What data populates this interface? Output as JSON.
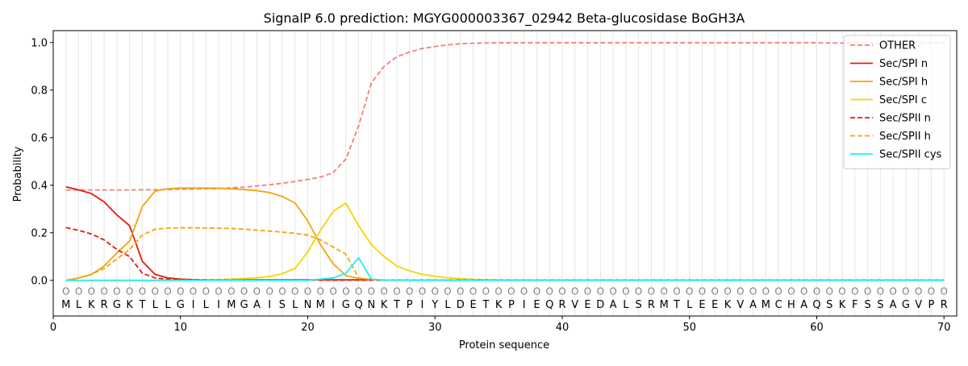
{
  "chart_data": {
    "type": "line",
    "title": "SignalP 6.0 prediction: MGYG000003367_02942 Beta-glucosidase BoGH3A",
    "xlabel": "Protein sequence",
    "ylabel": "Probability",
    "xlim": [
      0,
      71
    ],
    "ylim": [
      -0.15,
      1.05
    ],
    "xticks": [
      0,
      10,
      20,
      30,
      40,
      50,
      60,
      70
    ],
    "yticks": [
      0.0,
      0.2,
      0.4,
      0.6,
      0.8,
      1.0
    ],
    "xtick_labels": [
      "0",
      "10",
      "20",
      "30",
      "40",
      "50",
      "60",
      "70"
    ],
    "ytick_labels": [
      "0.0",
      "0.2",
      "0.4",
      "0.6",
      "0.8",
      "1.0"
    ],
    "grid": "vertical lines at every residue",
    "legend_position": "top-right",
    "sequence": [
      "M",
      "L",
      "K",
      "R",
      "G",
      "K",
      "T",
      "L",
      "L",
      "G",
      "I",
      "L",
      "I",
      "M",
      "G",
      "A",
      "I",
      "S",
      "L",
      "N",
      "M",
      "I",
      "G",
      "Q",
      "N",
      "K",
      "T",
      "P",
      "I",
      "Y",
      "L",
      "D",
      "E",
      "T",
      "K",
      "P",
      "I",
      "E",
      "Q",
      "R",
      "V",
      "E",
      "D",
      "A",
      "L",
      "S",
      "R",
      "M",
      "T",
      "L",
      "E",
      "E",
      "K",
      "V",
      "A",
      "M",
      "C",
      "H",
      "A",
      "Q",
      "S",
      "K",
      "F",
      "S",
      "S",
      "A",
      "G",
      "V",
      "P",
      "R"
    ],
    "position_marker": "O",
    "series": [
      {
        "name": "OTHER",
        "color": "#f08080",
        "dash": "dashed",
        "values": [
          0.38,
          0.38,
          0.38,
          0.38,
          0.38,
          0.38,
          0.381,
          0.381,
          0.382,
          0.383,
          0.384,
          0.385,
          0.386,
          0.389,
          0.392,
          0.397,
          0.402,
          0.408,
          0.416,
          0.424,
          0.434,
          0.453,
          0.51,
          0.65,
          0.83,
          0.9,
          0.94,
          0.96,
          0.975,
          0.983,
          0.99,
          0.995,
          0.997,
          0.998,
          0.999,
          0.999,
          0.999,
          0.999,
          0.999,
          0.999,
          0.999,
          0.999,
          0.999,
          0.999,
          0.999,
          0.999,
          0.999,
          0.999,
          0.999,
          0.999,
          0.999,
          0.999,
          0.999,
          0.999,
          0.999,
          0.999,
          0.999,
          0.999,
          0.999,
          0.999,
          0.998,
          0.998,
          0.997,
          0.997,
          0.996,
          0.996,
          0.997,
          0.998,
          0.999,
          0.999
        ]
      },
      {
        "name": "Sec/SPI n",
        "color": "#e8190e",
        "dash": "solid",
        "values": [
          0.393,
          0.38,
          0.365,
          0.33,
          0.275,
          0.23,
          0.08,
          0.025,
          0.01,
          0.005,
          0.003,
          0.002,
          0.002,
          0.002,
          0.002,
          0.002,
          0.002,
          0.002,
          0.002,
          0.002,
          0.002,
          0.002,
          0.002,
          0.002,
          0.002,
          0.001,
          0.001,
          0.001,
          0.001,
          0.001,
          0.001,
          0.001,
          0.001,
          0.001,
          0.001,
          0.001,
          0.001,
          0.001,
          0.001,
          0.001,
          0.001,
          0.001,
          0.001,
          0.001,
          0.001,
          0.001,
          0.001,
          0.001,
          0.001,
          0.001,
          0.001,
          0.001,
          0.001,
          0.001,
          0.001,
          0.001,
          0.001,
          0.001,
          0.001,
          0.001,
          0.001,
          0.001,
          0.001,
          0.001,
          0.001,
          0.001,
          0.001,
          0.001,
          0.001,
          0.001
        ]
      },
      {
        "name": "Sec/SPI h",
        "color": "#f5a30a",
        "dash": "solid",
        "values": [
          0.0,
          0.01,
          0.025,
          0.06,
          0.115,
          0.165,
          0.31,
          0.375,
          0.385,
          0.388,
          0.388,
          0.388,
          0.387,
          0.385,
          0.382,
          0.377,
          0.369,
          0.353,
          0.325,
          0.25,
          0.15,
          0.07,
          0.02,
          0.008,
          0.003,
          0.001,
          0.001,
          0.001,
          0.001,
          0.001,
          0.001,
          0.001,
          0.001,
          0.001,
          0.001,
          0.001,
          0.001,
          0.001,
          0.001,
          0.001,
          0.001,
          0.001,
          0.001,
          0.001,
          0.001,
          0.001,
          0.001,
          0.001,
          0.001,
          0.001,
          0.001,
          0.001,
          0.001,
          0.001,
          0.001,
          0.001,
          0.001,
          0.001,
          0.001,
          0.001,
          0.001,
          0.001,
          0.001,
          0.001,
          0.001,
          0.001,
          0.001,
          0.001,
          0.001,
          0.001
        ]
      },
      {
        "name": "Sec/SPI c",
        "color": "#f5d400",
        "dash": "solid",
        "values": [
          0.0,
          0.0,
          0.0,
          0.0,
          0.0,
          0.0,
          0.0,
          0.0,
          0.0,
          0.0,
          0.001,
          0.002,
          0.003,
          0.005,
          0.008,
          0.011,
          0.016,
          0.028,
          0.05,
          0.12,
          0.21,
          0.29,
          0.325,
          0.23,
          0.15,
          0.1,
          0.06,
          0.04,
          0.025,
          0.017,
          0.011,
          0.007,
          0.004,
          0.003,
          0.002,
          0.001,
          0.001,
          0.001,
          0.001,
          0.001,
          0.001,
          0.001,
          0.001,
          0.001,
          0.001,
          0.001,
          0.001,
          0.001,
          0.001,
          0.001,
          0.001,
          0.001,
          0.001,
          0.001,
          0.001,
          0.001,
          0.001,
          0.001,
          0.001,
          0.001,
          0.001,
          0.001,
          0.001,
          0.001,
          0.001,
          0.001,
          0.001,
          0.001,
          0.001,
          0.001
        ]
      },
      {
        "name": "Sec/SPII n",
        "color": "#e8190e",
        "dash": "dashed",
        "values": [
          0.222,
          0.21,
          0.195,
          0.17,
          0.13,
          0.1,
          0.03,
          0.01,
          0.004,
          0.002,
          0.001,
          0.001,
          0.001,
          0.001,
          0.001,
          0.001,
          0.001,
          0.001,
          0.001,
          0.001,
          0.001,
          0.001,
          0.001,
          0.001,
          0.001,
          0.001,
          0.001,
          0.001,
          0.001,
          0.001,
          0.001,
          0.001,
          0.001,
          0.001,
          0.001,
          0.001,
          0.001,
          0.001,
          0.001,
          0.001,
          0.001,
          0.001,
          0.001,
          0.001,
          0.001,
          0.001,
          0.001,
          0.001,
          0.001,
          0.001,
          0.001,
          0.001,
          0.001,
          0.001,
          0.001,
          0.001,
          0.001,
          0.001,
          0.001,
          0.001,
          0.001,
          0.001,
          0.001,
          0.001,
          0.001,
          0.001,
          0.001,
          0.001,
          0.001,
          0.001
        ]
      },
      {
        "name": "Sec/SPII h",
        "color": "#f5a30a",
        "dash": "dashed",
        "values": [
          0.0,
          0.01,
          0.025,
          0.05,
          0.09,
          0.13,
          0.19,
          0.215,
          0.22,
          0.221,
          0.221,
          0.22,
          0.219,
          0.218,
          0.215,
          0.211,
          0.207,
          0.203,
          0.198,
          0.19,
          0.17,
          0.14,
          0.11,
          0.01,
          0.003,
          0.001,
          0.001,
          0.001,
          0.001,
          0.001,
          0.001,
          0.001,
          0.001,
          0.001,
          0.001,
          0.001,
          0.001,
          0.001,
          0.001,
          0.001,
          0.001,
          0.001,
          0.001,
          0.001,
          0.001,
          0.001,
          0.001,
          0.001,
          0.001,
          0.001,
          0.001,
          0.001,
          0.001,
          0.001,
          0.001,
          0.001,
          0.001,
          0.001,
          0.001,
          0.001,
          0.001,
          0.001,
          0.001,
          0.001,
          0.001,
          0.001,
          0.001,
          0.001,
          0.001,
          0.001
        ]
      },
      {
        "name": "Sec/SPII cys",
        "color": "#1ef0ee",
        "dash": "solid",
        "values": [
          0.0,
          0.0,
          0.0,
          0.0,
          0.0,
          0.0,
          0.0,
          0.0,
          0.0,
          0.0,
          0.0,
          0.0,
          0.0,
          0.0,
          0.0,
          0.0,
          0.0,
          0.0,
          0.0,
          0.0,
          0.005,
          0.01,
          0.03,
          0.095,
          0.005,
          0.001,
          0.0,
          0.0,
          0.0,
          0.0,
          0.0,
          0.0,
          0.0,
          0.0,
          0.0,
          0.0,
          0.0,
          0.0,
          0.0,
          0.0,
          0.0,
          0.0,
          0.0,
          0.0,
          0.0,
          0.0,
          0.0,
          0.0,
          0.0,
          0.0,
          0.0,
          0.0,
          0.0,
          0.0,
          0.0,
          0.0,
          0.0,
          0.0,
          0.0,
          0.0,
          0.0,
          0.0,
          0.0,
          0.0,
          0.0,
          0.0,
          0.0,
          0.0,
          0.0,
          0.0
        ]
      }
    ]
  }
}
